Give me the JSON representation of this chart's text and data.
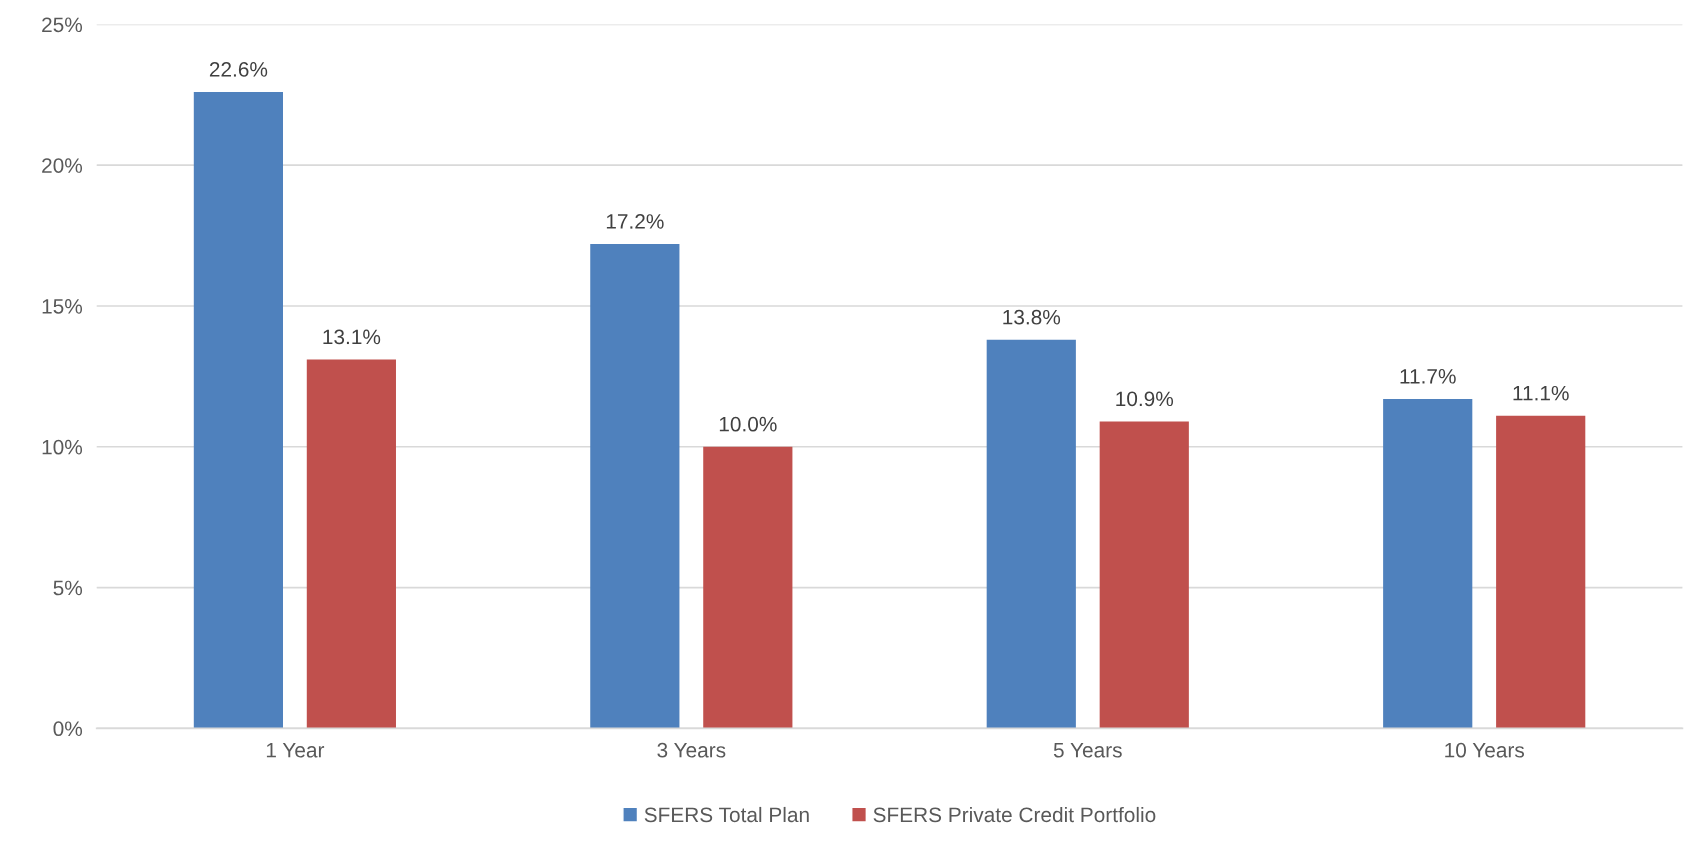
{
  "chart_data": {
    "type": "bar",
    "categories": [
      "1 Year",
      "3 Years",
      "5 Years",
      "10 Years"
    ],
    "series": [
      {
        "name": "SFERS Total Plan",
        "color": "#4f81bd",
        "values": [
          22.6,
          17.2,
          13.8,
          11.7
        ],
        "value_labels": [
          "22.6%",
          "17.2%",
          "13.8%",
          "11.7%"
        ]
      },
      {
        "name": "SFERS Private Credit Portfolio",
        "color": "#c0504d",
        "values": [
          13.1,
          10.0,
          10.9,
          11.1
        ],
        "value_labels": [
          "13.1%",
          "10.0%",
          "10.9%",
          "11.1%"
        ]
      }
    ],
    "ylim": [
      0,
      25
    ],
    "yticks": [
      {
        "value": 0,
        "label": "0%"
      },
      {
        "value": 5,
        "label": "5%"
      },
      {
        "value": 10,
        "label": "10%"
      },
      {
        "value": 15,
        "label": "15%"
      },
      {
        "value": 20,
        "label": "20%"
      },
      {
        "value": 25,
        "label": "25%"
      }
    ],
    "grid": "y",
    "legend": "bottom"
  }
}
